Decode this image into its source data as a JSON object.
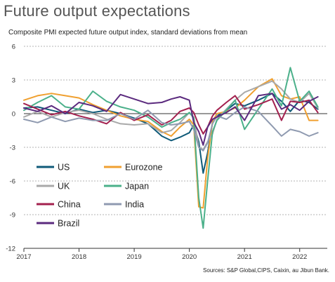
{
  "title": "Future output expectations",
  "subtitle": "Composite PMI expected future output index, standard deviations from mean",
  "source": "Sources: S&P Global,CIPS, Caixin, au Jibun Bank.",
  "chart_data": {
    "type": "line",
    "ylim": [
      -12,
      6
    ],
    "yticks": [
      6,
      3,
      0,
      -3,
      -6,
      -9,
      -12
    ],
    "xlim": [
      2017.0,
      2022.5
    ],
    "xticks": [
      2017,
      2018,
      2019,
      2020,
      2021,
      2022
    ],
    "grid": "horizontal-dashed",
    "legend": "bottom-left",
    "series": [
      {
        "name": "US",
        "color": "#0f5a78",
        "x": [
          2017.0,
          2017.25,
          2017.5,
          2017.75,
          2018.0,
          2018.25,
          2018.5,
          2018.75,
          2019.0,
          2019.25,
          2019.5,
          2019.67,
          2019.83,
          2020.0,
          2020.08,
          2020.17,
          2020.25,
          2020.33,
          2020.42,
          2020.5,
          2020.67,
          2020.83,
          2021.0,
          2021.25,
          2021.5,
          2021.67,
          2021.83,
          2022.0,
          2022.17,
          2022.33
        ],
        "values": [
          0.5,
          0.6,
          0.3,
          0.0,
          0.4,
          0.1,
          0.3,
          0.0,
          -0.4,
          -0.9,
          -2.0,
          -2.4,
          -2.1,
          -1.7,
          -1.0,
          -2.5,
          -5.3,
          -3.5,
          -0.8,
          -0.2,
          0.3,
          0.9,
          0.7,
          1.2,
          1.8,
          1.1,
          0.2,
          1.2,
          1.0,
          0.4
        ]
      },
      {
        "name": "Eurozone",
        "color": "#f0a030",
        "x": [
          2017.0,
          2017.25,
          2017.5,
          2017.75,
          2018.0,
          2018.25,
          2018.5,
          2018.75,
          2019.0,
          2019.25,
          2019.5,
          2019.67,
          2019.83,
          2020.0,
          2020.08,
          2020.17,
          2020.25,
          2020.33,
          2020.42,
          2020.5,
          2020.67,
          2020.83,
          2021.0,
          2021.25,
          2021.5,
          2021.67,
          2021.83,
          2022.0,
          2022.17,
          2022.33
        ],
        "values": [
          1.2,
          1.6,
          1.8,
          1.6,
          1.4,
          0.8,
          0.3,
          -0.2,
          -0.5,
          -0.7,
          -1.6,
          -2.0,
          -1.2,
          -0.5,
          -1.0,
          -8.3,
          -8.4,
          -4.0,
          -0.7,
          0.0,
          0.2,
          0.5,
          1.2,
          2.4,
          3.1,
          1.6,
          1.3,
          1.5,
          -0.6,
          -0.6
        ]
      },
      {
        "name": "UK",
        "color": "#a9a9a9",
        "x": [
          2017.0,
          2017.25,
          2017.5,
          2017.75,
          2018.0,
          2018.25,
          2018.5,
          2018.75,
          2019.0,
          2019.25,
          2019.5,
          2019.67,
          2019.83,
          2020.0,
          2020.08,
          2020.17,
          2020.25,
          2020.33,
          2020.42,
          2020.5,
          2020.67,
          2020.83,
          2021.0,
          2021.25,
          2021.5,
          2021.67,
          2021.83,
          2022.0,
          2022.17,
          2022.33
        ],
        "values": [
          -0.3,
          0.2,
          -0.3,
          0.1,
          0.3,
          0.0,
          -0.5,
          -0.9,
          -1.0,
          -0.9,
          -1.7,
          -1.5,
          -0.8,
          0.1,
          -0.3,
          -3.0,
          -3.2,
          -2.5,
          -1.8,
          -0.5,
          0.4,
          1.2,
          1.9,
          2.4,
          2.9,
          2.2,
          1.3,
          1.0,
          1.8,
          0.5
        ]
      },
      {
        "name": "Japan",
        "color": "#4bb08a",
        "x": [
          2017.0,
          2017.25,
          2017.5,
          2017.75,
          2018.0,
          2018.25,
          2018.5,
          2018.75,
          2019.0,
          2019.25,
          2019.5,
          2019.67,
          2019.83,
          2020.0,
          2020.08,
          2020.17,
          2020.25,
          2020.33,
          2020.42,
          2020.5,
          2020.67,
          2020.83,
          2021.0,
          2021.25,
          2021.5,
          2021.67,
          2021.83,
          2022.0,
          2022.17,
          2022.33
        ],
        "values": [
          0.3,
          1.0,
          1.6,
          0.6,
          0.4,
          2.0,
          1.1,
          0.6,
          0.3,
          -0.3,
          -1.2,
          -0.8,
          -0.5,
          0.1,
          -0.4,
          -7.5,
          -10.2,
          -6.0,
          -1.6,
          -0.6,
          0.3,
          1.2,
          -1.4,
          0.4,
          2.2,
          0.7,
          4.1,
          1.1,
          2.0,
          0.6
        ]
      },
      {
        "name": "China",
        "color": "#a3204e",
        "x": [
          2017.0,
          2017.25,
          2017.5,
          2017.75,
          2018.0,
          2018.25,
          2018.5,
          2018.75,
          2019.0,
          2019.25,
          2019.5,
          2019.67,
          2019.83,
          2020.0,
          2020.08,
          2020.17,
          2020.25,
          2020.33,
          2020.42,
          2020.5,
          2020.67,
          2020.83,
          2021.0,
          2021.25,
          2021.5,
          2021.67,
          2021.83,
          2022.0,
          2022.17,
          2022.33
        ],
        "values": [
          0.9,
          0.4,
          -0.1,
          0.2,
          -0.2,
          -0.5,
          -0.9,
          0.1,
          -0.6,
          -0.1,
          -1.0,
          -0.6,
          0.2,
          0.5,
          0.1,
          -1.0,
          -1.8,
          -1.2,
          -0.2,
          0.3,
          1.0,
          1.6,
          0.4,
          0.8,
          1.3,
          -0.6,
          1.1,
          1.0,
          1.2,
          0.1
        ]
      },
      {
        "name": "India",
        "color": "#8f9ab0",
        "x": [
          2017.0,
          2017.25,
          2017.5,
          2017.75,
          2018.0,
          2018.25,
          2018.5,
          2018.75,
          2019.0,
          2019.25,
          2019.5,
          2019.67,
          2019.83,
          2020.0,
          2020.08,
          2020.17,
          2020.25,
          2020.33,
          2020.42,
          2020.5,
          2020.67,
          2020.83,
          2021.0,
          2021.25,
          2021.5,
          2021.67,
          2021.83,
          2022.0,
          2022.17,
          2022.33
        ],
        "values": [
          -0.5,
          -0.8,
          -0.3,
          -0.7,
          -0.4,
          -0.6,
          -0.6,
          0.0,
          -0.5,
          0.3,
          -0.8,
          -1.0,
          -0.9,
          -0.7,
          -1.4,
          -3.0,
          -3.3,
          -2.6,
          -0.9,
          -0.2,
          -0.5,
          0.1,
          0.6,
          0.2,
          -1.1,
          -2.0,
          -1.4,
          -1.6,
          -2.0,
          -1.7
        ]
      },
      {
        "name": "Brazil",
        "color": "#5b2a7e",
        "x": [
          2017.0,
          2017.25,
          2017.5,
          2017.75,
          2018.0,
          2018.25,
          2018.5,
          2018.75,
          2019.0,
          2019.25,
          2019.5,
          2019.67,
          2019.83,
          2020.0,
          2020.08,
          2020.17,
          2020.25,
          2020.33,
          2020.42,
          2020.5,
          2020.67,
          2020.83,
          2021.0,
          2021.25,
          2021.5,
          2021.67,
          2021.83,
          2022.0,
          2022.17,
          2022.33
        ],
        "values": [
          0.5,
          0.2,
          0.7,
          0.0,
          1.0,
          0.7,
          0.2,
          1.7,
          1.3,
          0.9,
          1.0,
          1.3,
          1.5,
          1.2,
          -0.8,
          -1.6,
          -2.8,
          -1.2,
          -0.5,
          -0.3,
          0.1,
          0.6,
          -0.6,
          1.6,
          1.8,
          0.4,
          0.8,
          0.3,
          1.1,
          1.5
        ]
      }
    ]
  }
}
